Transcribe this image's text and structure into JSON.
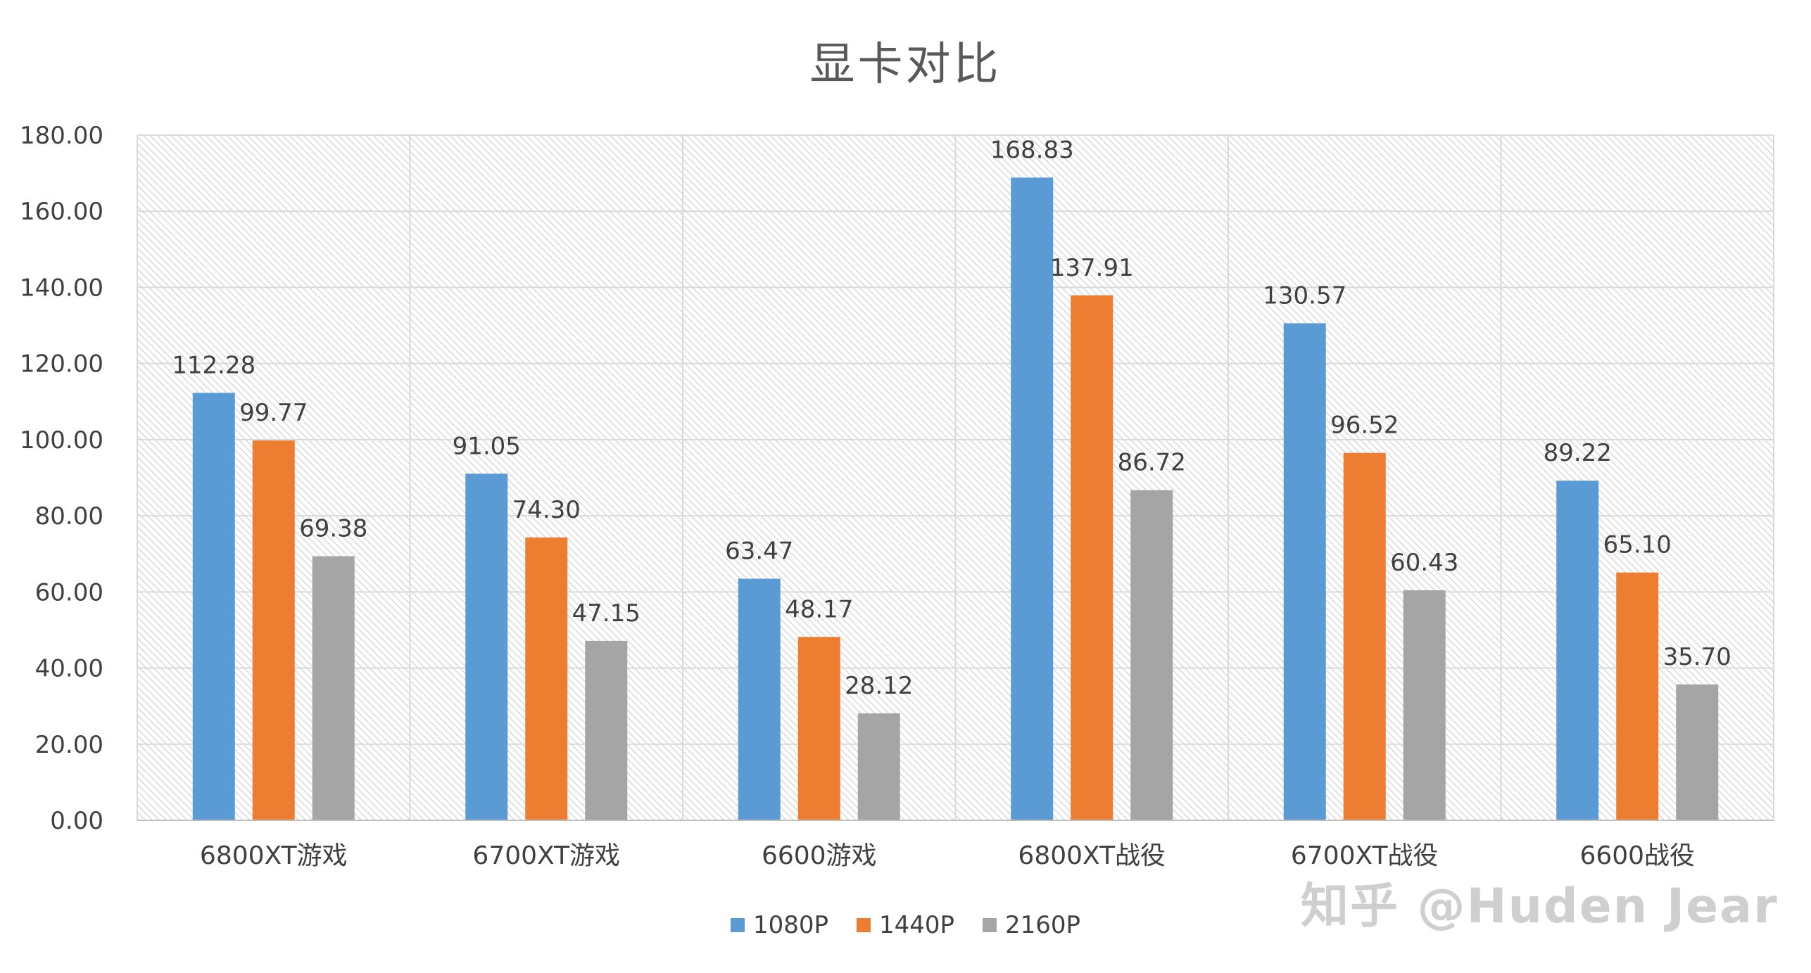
{
  "watermark": "知乎 @Huden Jear",
  "chart_data": {
    "type": "bar",
    "title": "显卡对比",
    "xlabel": "",
    "ylabel": "",
    "ylim": [
      0,
      180
    ],
    "yticks": [
      "0.00",
      "20.00",
      "40.00",
      "60.00",
      "80.00",
      "100.00",
      "120.00",
      "140.00",
      "160.00",
      "180.00"
    ],
    "grid": true,
    "legend_position": "bottom",
    "categories": [
      "6800XT游戏",
      "6700XT游戏",
      "6600游戏",
      "6800XT战役",
      "6700XT战役",
      "6600战役"
    ],
    "series": [
      {
        "name": "1080P",
        "color": "#5B9BD5",
        "values": [
          112.28,
          91.05,
          63.47,
          168.83,
          130.57,
          89.22
        ],
        "labels": [
          "112.28",
          "91.05",
          "63.47",
          "168.83",
          "130.57",
          "89.22"
        ]
      },
      {
        "name": "1440P",
        "color": "#ED7D31",
        "values": [
          99.77,
          74.3,
          48.17,
          137.91,
          96.52,
          65.1
        ],
        "labels": [
          "99.77",
          "74.30",
          "48.17",
          "137.91",
          "96.52",
          "65.10"
        ]
      },
      {
        "name": "2160P",
        "color": "#A5A5A5",
        "values": [
          69.38,
          47.15,
          28.12,
          86.72,
          60.43,
          35.7
        ],
        "labels": [
          "69.38",
          "47.15",
          "28.12",
          "86.72",
          "60.43",
          "35.70"
        ]
      }
    ]
  }
}
